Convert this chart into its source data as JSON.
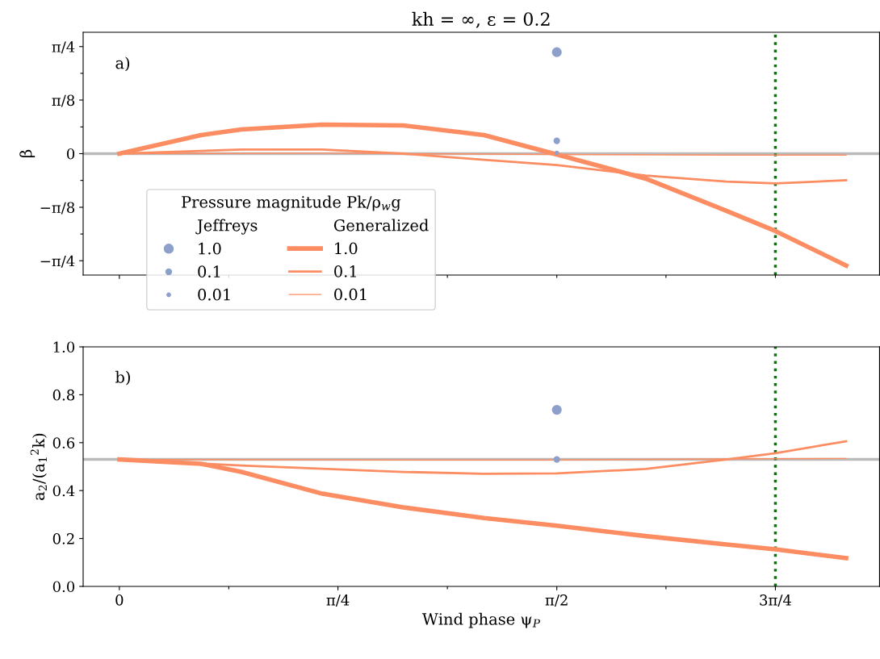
{
  "chart_data": [
    {
      "type": "line",
      "title": "kh = ∞, ε = 0.2",
      "ylabel": "β",
      "annotations": [
        "a)",
        "Jeffreys",
        "Generalized"
      ],
      "legend_title": "Pressure magnitude Pk/ρ$_{w}$g",
      "legend": "bottom left",
      "tick_labels": "y",
      "xlim": [
        -0.13,
        2.73
      ],
      "xticks": [
        {
          "value": 0,
          "label": null
        },
        {
          "value": 0.393,
          "label": null
        },
        {
          "value": 0.785,
          "label": null
        },
        {
          "value": 1.178,
          "label": null
        },
        {
          "value": 1.571,
          "label": null
        },
        {
          "value": 1.963,
          "label": null
        },
        {
          "value": 2.356,
          "label": null
        }
      ],
      "ylim": [
        -0.89,
        0.89
      ],
      "yticks": [
        {
          "value": -0.785,
          "label": "−π/4"
        },
        {
          "value": -0.589,
          "label": null
        },
        {
          "value": -0.393,
          "label": "−π/8"
        },
        {
          "value": -0.196,
          "label": null
        },
        0,
        {
          "value": 0.196,
          "label": null
        },
        {
          "value": 0.393,
          "label": "π/8"
        },
        {
          "value": 0.589,
          "label": null
        },
        {
          "value": 0.785,
          "label": "π/4"
        }
      ],
      "ref_lines": [
        {
          "axis": "y",
          "value": 0,
          "color": "#bbbbbb",
          "line_style": "solid"
        },
        {
          "axis": "x",
          "value": 2.356,
          "color": "#007700",
          "line_style": "dotted"
        }
      ],
      "series": [
        {
          "name": "1.0",
          "type": "bubble",
          "color": "#8da0cb",
          "x": [
            1.571
          ],
          "values": [
            0.744
          ],
          "sizes": [
            1
          ]
        },
        {
          "name": "0.1",
          "type": "bubble",
          "color": "#8da0cb",
          "x": [
            1.571
          ],
          "values": [
            0.094
          ],
          "sizes": [
            0.4
          ]
        },
        {
          "name": "0.01",
          "type": "bubble",
          "color": "#8da0cb",
          "x": [
            1.571
          ],
          "values": [
            0.006
          ],
          "sizes": [
            0.16
          ]
        },
        {
          "name": "1.0",
          "color": "#fc8d62",
          "x": [
            0,
            0.293,
            0.438,
            0.729,
            1.019,
            1.31,
            1.571,
            1.89,
            2.18,
            2.356,
            2.61
          ],
          "values": [
            0,
            0.136,
            0.177,
            0.213,
            0.207,
            0.136,
            -0.006,
            -0.183,
            -0.419,
            -0.567,
            -0.82
          ]
        },
        {
          "name": "0.1",
          "color": "#fc8d62",
          "x": [
            0,
            0.438,
            0.729,
            1.019,
            1.31,
            1.571,
            1.89,
            2.18,
            2.356,
            2.61
          ],
          "values": [
            0,
            0.03,
            0.03,
            0,
            -0.045,
            -0.083,
            -0.16,
            -0.205,
            -0.218,
            -0.195
          ]
        },
        {
          "name": "0.01",
          "color": "#fc8d62",
          "x": [
            0,
            0.729,
            1.571,
            2.18,
            2.61
          ],
          "values": [
            0,
            0.004,
            -0.006,
            -0.01,
            -0.01
          ]
        }
      ]
    },
    {
      "type": "line",
      "xlabel": "Wind phase ψ$_{P}$",
      "ylabel": "a$_{2}$/(a$_{1}$$^{2}$k)",
      "annotations": [
        "b)"
      ],
      "xlim": [
        -0.13,
        2.73
      ],
      "xticks": [
        0,
        {
          "value": 0.393,
          "label": null
        },
        {
          "value": 0.785,
          "label": "π/4"
        },
        {
          "value": 1.178,
          "label": null
        },
        {
          "value": 1.571,
          "label": "π/2"
        },
        {
          "value": 1.963,
          "label": null
        },
        {
          "value": 2.356,
          "label": "3π/4"
        }
      ],
      "ylim": [
        0,
        1.0
      ],
      "yticks": [
        {
          "value": 0,
          "label": "0.0"
        },
        0.2,
        0.4,
        0.6,
        0.8,
        {
          "value": 1,
          "label": "1.0"
        }
      ],
      "ref_lines": [
        {
          "axis": "y",
          "value": 0.53,
          "color": "#bbbbbb",
          "line_style": "solid"
        },
        {
          "axis": "x",
          "value": 2.356,
          "color": "#007700",
          "line_style": "dotted"
        }
      ],
      "series": [
        {
          "type": "bubble",
          "color": "#8da0cb",
          "x": [
            1.571
          ],
          "values": [
            0.737
          ],
          "sizes": [
            1
          ]
        },
        {
          "type": "bubble",
          "color": "#8da0cb",
          "x": [
            1.571
          ],
          "values": [
            0.53
          ],
          "sizes": [
            0.4
          ]
        },
        {
          "color": "#fc8d62",
          "x": [
            0,
            0.293,
            0.438,
            0.729,
            1.019,
            1.31,
            1.571,
            1.89,
            2.18,
            2.356,
            2.61
          ],
          "values": [
            0.53,
            0.512,
            0.478,
            0.387,
            0.33,
            0.285,
            0.253,
            0.21,
            0.175,
            0.155,
            0.118
          ]
        },
        {
          "color": "#fc8d62",
          "x": [
            0,
            0.438,
            1.019,
            1.31,
            1.571,
            1.89,
            2.18,
            2.356,
            2.61
          ],
          "values": [
            0.53,
            0.505,
            0.478,
            0.47,
            0.472,
            0.49,
            0.53,
            0.556,
            0.606
          ]
        },
        {
          "color": "#fc8d62",
          "x": [
            0,
            1.019,
            1.571,
            2.18,
            2.61
          ],
          "values": [
            0.53,
            0.528,
            0.528,
            0.532,
            0.534
          ]
        }
      ]
    }
  ]
}
